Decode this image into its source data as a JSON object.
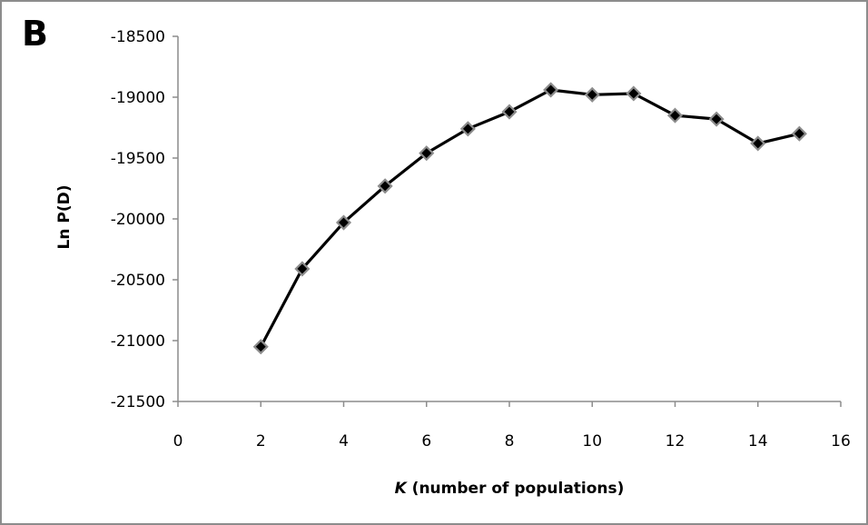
{
  "panel_label": "B",
  "chart_data": {
    "type": "line",
    "title": "",
    "xlabel_italic": "K",
    "xlabel_rest": " (number of populations)",
    "ylabel": "Ln P(D)",
    "xlim": [
      0,
      16
    ],
    "ylim": [
      -21500,
      -18500
    ],
    "x_ticks": [
      0,
      2,
      4,
      6,
      8,
      10,
      12,
      14,
      16
    ],
    "y_ticks": [
      -18500,
      -19000,
      -19500,
      -20000,
      -20500,
      -21000,
      -21500
    ],
    "grid": false,
    "legend": "none",
    "marker": "diamond",
    "line_color": "#000000",
    "marker_fill": "#000000",
    "marker_edge": "#8c8c8c",
    "series": [
      {
        "x": [
          2,
          3,
          4,
          5,
          6,
          7,
          8,
          9,
          10,
          11,
          12,
          13,
          14,
          15
        ],
        "y": [
          -21050,
          -20410,
          -20030,
          -19730,
          -19460,
          -19260,
          -19120,
          -18940,
          -18980,
          -18970,
          -19150,
          -19180,
          -19380,
          -19300
        ]
      }
    ]
  }
}
